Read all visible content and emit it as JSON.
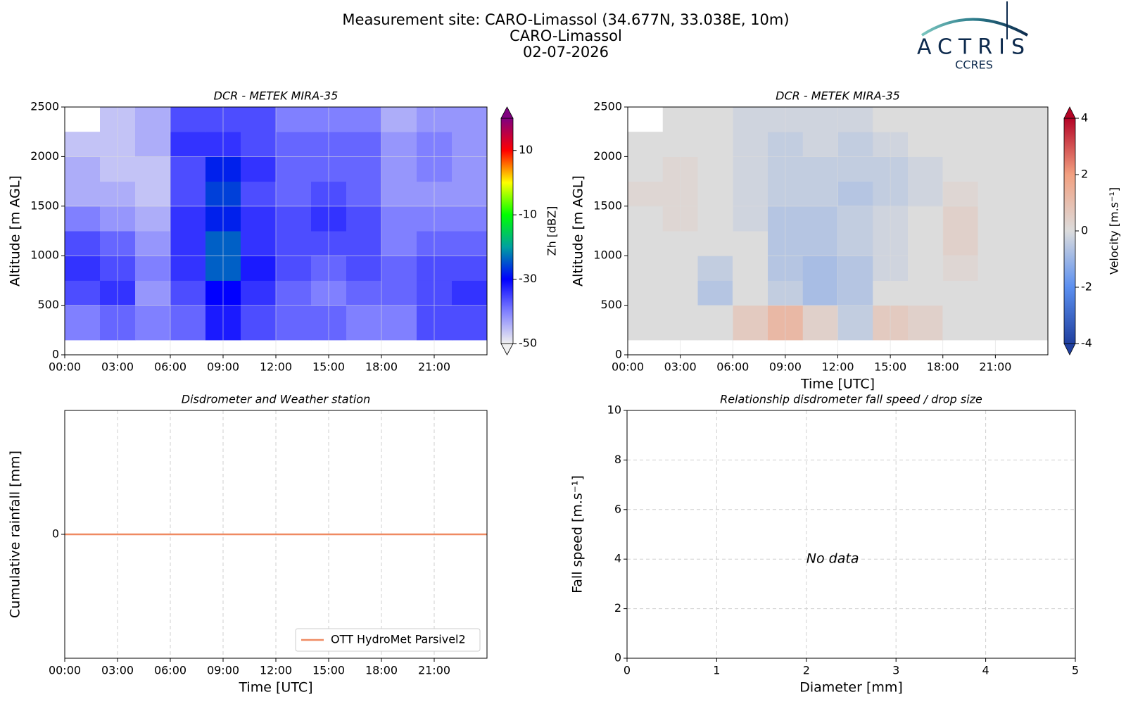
{
  "header": {
    "lines": [
      "Measurement site: CARO-Limassol (34.677N, 33.038E, 10m)",
      "CARO-Limassol",
      "02-07-2026"
    ]
  },
  "logo": {
    "name": "ACTRIS",
    "sub": "CCRES"
  },
  "chart_data": [
    {
      "type": "heatmap",
      "title": "DCR - METEK MIRA-35",
      "ylabel": "Altitude [m AGL]",
      "x_edges": [
        0,
        2,
        4,
        6,
        8,
        10,
        12,
        14,
        16,
        18,
        20,
        22,
        24
      ],
      "y_edges": [
        150,
        500,
        750,
        1000,
        1250,
        1500,
        1750,
        2000,
        2250,
        2500
      ],
      "z": [
        [
          -40,
          -38,
          -40,
          -38,
          -32,
          -36,
          -38,
          -38,
          -40,
          -40,
          -36,
          -36
        ],
        [
          -36,
          -34,
          -42,
          -36,
          -30,
          -34,
          -38,
          -40,
          -38,
          -38,
          -36,
          -34
        ],
        [
          -34,
          -36,
          -40,
          -34,
          -24,
          -32,
          -36,
          -38,
          -36,
          -38,
          -36,
          -36
        ],
        [
          -36,
          -38,
          -42,
          -34,
          -24,
          -34,
          -36,
          -36,
          -36,
          -40,
          -38,
          -38
        ],
        [
          -40,
          -42,
          -44,
          -34,
          -28,
          -34,
          -36,
          -34,
          -36,
          -40,
          -40,
          -40
        ],
        [
          -44,
          -44,
          -46,
          -36,
          -26,
          -36,
          -38,
          -36,
          -38,
          -42,
          -42,
          -42
        ],
        [
          -44,
          -46,
          -46,
          -36,
          -28,
          -34,
          -38,
          -38,
          -38,
          -42,
          -40,
          -42
        ],
        [
          -46,
          -46,
          -44,
          -34,
          -34,
          -36,
          -38,
          -38,
          -38,
          -42,
          -40,
          -42
        ],
        [
          null,
          -46,
          -44,
          -36,
          -36,
          -36,
          -40,
          -40,
          -40,
          -44,
          -42,
          -42
        ]
      ],
      "xlim": [
        0,
        24
      ],
      "xticks": [
        {
          "value": 0,
          "label": "00:00"
        },
        {
          "value": 3,
          "label": "03:00"
        },
        {
          "value": 6,
          "label": "06:00"
        },
        {
          "value": 9,
          "label": "09:00"
        },
        {
          "value": 12,
          "label": "12:00"
        },
        {
          "value": 15,
          "label": "15:00"
        },
        {
          "value": 18,
          "label": "18:00"
        },
        {
          "value": 21,
          "label": "21:00"
        }
      ],
      "ylim": [
        0,
        2500
      ],
      "yticks": [
        0,
        500,
        1000,
        1500,
        2000,
        2500
      ],
      "grid": true,
      "grid_style": "solid",
      "colorbar": {
        "label": "Zh [dBZ]",
        "clim": [
          -50,
          20
        ],
        "ticks": [
          -50,
          -30,
          -10,
          10
        ],
        "extend": "both",
        "cmap": [
          "#f0f0f0",
          "#8080ff",
          "#0000ff",
          "#00a0a0",
          "#00ff00",
          "#ffff00",
          "#ff0000",
          "#800080"
        ]
      }
    },
    {
      "type": "heatmap",
      "title": "DCR - METEK MIRA-35",
      "ylabel": "Altitude [m AGL]",
      "xlabel": "Time [UTC]",
      "x_edges": [
        0,
        2,
        4,
        6,
        8,
        10,
        12,
        14,
        16,
        18,
        20,
        22,
        24
      ],
      "y_edges": [
        150,
        500,
        750,
        1000,
        1250,
        1500,
        1750,
        2000,
        2250,
        2500
      ],
      "z": [
        [
          0,
          0,
          0,
          0.6,
          1.2,
          0.4,
          -0.4,
          0.6,
          0.4,
          0,
          0,
          0
        ],
        [
          0,
          0,
          -0.6,
          0,
          -0.4,
          -0.8,
          -0.6,
          0,
          0,
          0,
          0,
          0
        ],
        [
          0,
          0,
          -0.4,
          0,
          -0.6,
          -0.8,
          -0.6,
          -0.2,
          0,
          0.2,
          0,
          0
        ],
        [
          0,
          0,
          0,
          0,
          -0.6,
          -0.6,
          -0.4,
          -0.2,
          0,
          0.4,
          0,
          0
        ],
        [
          0,
          0.2,
          0,
          -0.2,
          -0.6,
          -0.6,
          -0.4,
          -0.2,
          0,
          0.4,
          0,
          0
        ],
        [
          0.2,
          0.2,
          0,
          -0.2,
          -0.4,
          -0.4,
          -0.6,
          -0.4,
          -0.2,
          0.2,
          0,
          0
        ],
        [
          0,
          0.2,
          0,
          -0.2,
          -0.4,
          -0.4,
          -0.4,
          -0.4,
          -0.2,
          0,
          0,
          0
        ],
        [
          0,
          0,
          0,
          -0.2,
          -0.4,
          -0.2,
          -0.4,
          -0.2,
          0,
          0,
          0,
          0
        ],
        [
          null,
          0,
          0,
          -0.2,
          -0.2,
          -0.2,
          -0.2,
          0,
          0,
          0,
          0,
          0
        ]
      ],
      "xlim": [
        0,
        24
      ],
      "xticks": [
        {
          "value": 0,
          "label": "00:00"
        },
        {
          "value": 3,
          "label": "03:00"
        },
        {
          "value": 6,
          "label": "06:00"
        },
        {
          "value": 9,
          "label": "09:00"
        },
        {
          "value": 12,
          "label": "12:00"
        },
        {
          "value": 15,
          "label": "15:00"
        },
        {
          "value": 18,
          "label": "18:00"
        },
        {
          "value": 21,
          "label": "21:00"
        }
      ],
      "ylim": [
        0,
        2500
      ],
      "yticks": [
        0,
        500,
        1000,
        1500,
        2000,
        2500
      ],
      "grid": true,
      "grid_style": "solid",
      "colorbar": {
        "label": "Velocity [m.s⁻¹]",
        "clim": [
          -4,
          4
        ],
        "ticks": [
          -4,
          -2,
          0,
          2,
          4
        ],
        "extend": "both",
        "cmap": [
          "#2040a0",
          "#5b8ff0",
          "#dcdcdc",
          "#f2a080",
          "#b40426"
        ]
      }
    },
    {
      "type": "line",
      "title": "Disdrometer and Weather station",
      "ylabel": "Cumulative rainfall [mm]",
      "xlabel": "Time [UTC]",
      "x": [
        0,
        24
      ],
      "series": [
        {
          "name": "OTT HydroMet Parsivel2",
          "color": "#ef8a62",
          "values": [
            0,
            0
          ]
        }
      ],
      "xlim": [
        0,
        24
      ],
      "xticks": [
        {
          "value": 0,
          "label": "00:00"
        },
        {
          "value": 3,
          "label": "03:00"
        },
        {
          "value": 6,
          "label": "06:00"
        },
        {
          "value": 9,
          "label": "09:00"
        },
        {
          "value": 12,
          "label": "12:00"
        },
        {
          "value": 15,
          "label": "15:00"
        },
        {
          "value": 18,
          "label": "18:00"
        },
        {
          "value": 21,
          "label": "21:00"
        }
      ],
      "ylim": [
        -1,
        1
      ],
      "yticks": [
        0
      ],
      "grid": true,
      "grid_style": "dashed",
      "legend": "lower right"
    },
    {
      "type": "scatter",
      "title": "Relationship disdrometer fall speed / drop size",
      "ylabel": "Fall speed [m.s⁻¹]",
      "xlabel": "Diameter [mm]",
      "x": [],
      "values": [],
      "annotation": {
        "text": "No data",
        "x": 2,
        "y": 4
      },
      "xlim": [
        0,
        5
      ],
      "xticks": [
        0,
        1,
        2,
        3,
        4,
        5
      ],
      "ylim": [
        0,
        10
      ],
      "yticks": [
        0,
        2,
        4,
        6,
        8,
        10
      ],
      "grid": true,
      "grid_style": "dashed"
    }
  ]
}
